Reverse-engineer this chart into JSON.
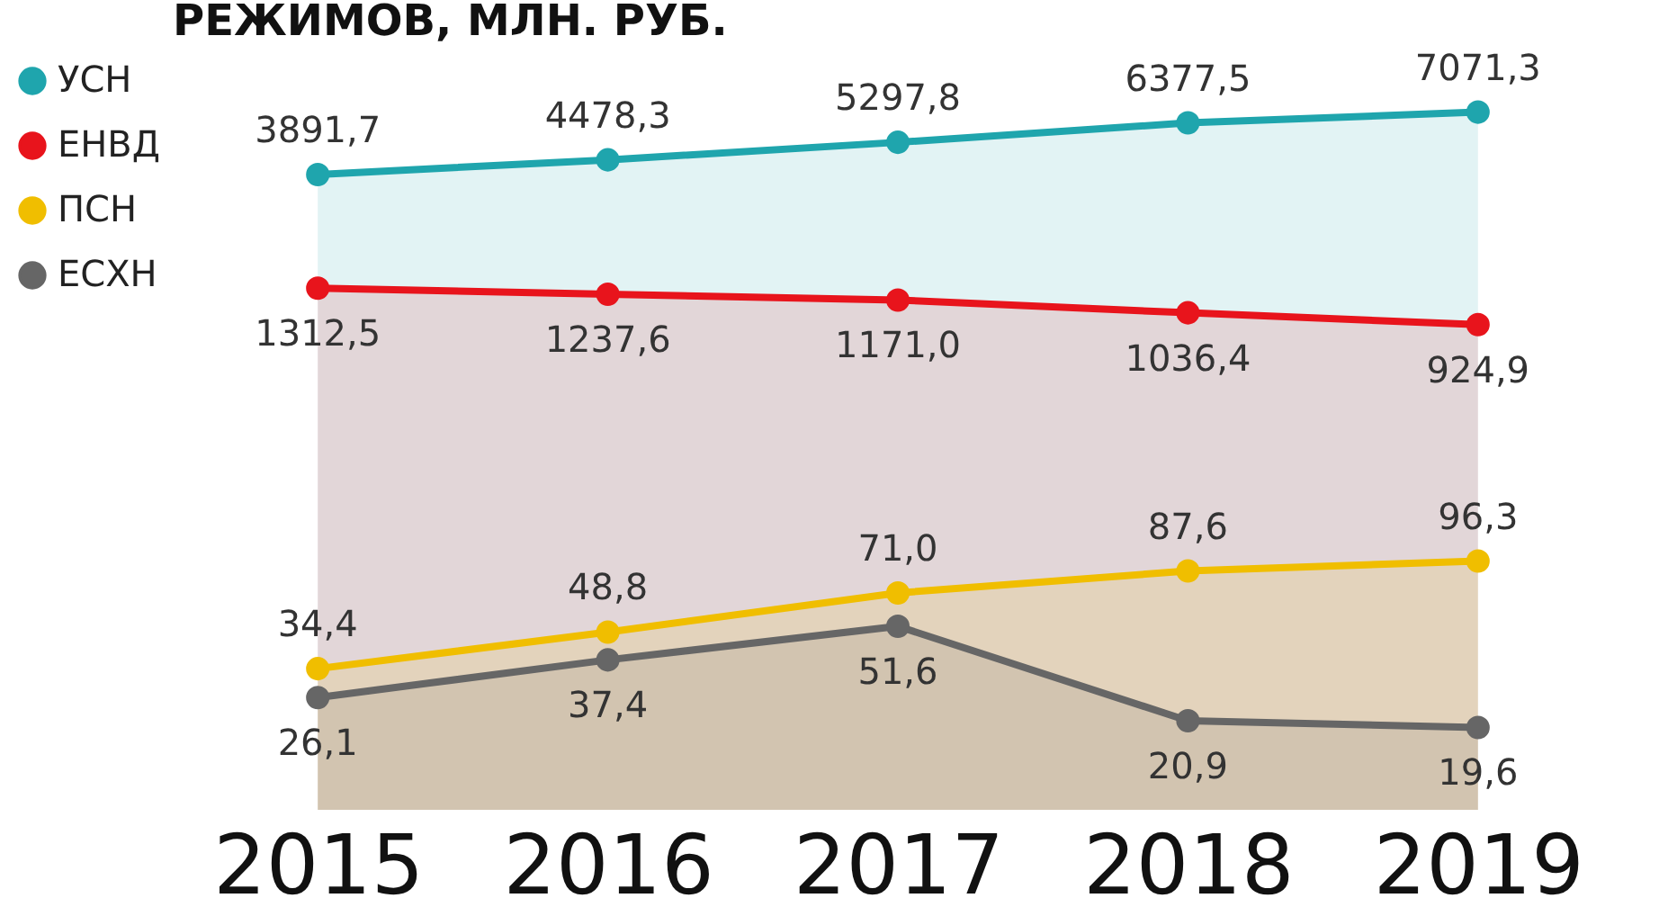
{
  "chart_data": {
    "type": "area",
    "title": "РЕЖИМОВ, МЛН. РУБ.",
    "categories": [
      "2015",
      "2016",
      "2017",
      "2018",
      "2019"
    ],
    "series": [
      {
        "name": "УСН",
        "color": "#1fa5ad",
        "values": [
          3891.7,
          4478.3,
          5297.8,
          6377.5,
          7071.3
        ],
        "value_labels": [
          "3891,7",
          "4478,3",
          "5297,8",
          "6377,5",
          "7071,3"
        ]
      },
      {
        "name": "ЕНВД",
        "color": "#e8141c",
        "values": [
          1312.5,
          1237.6,
          1171.0,
          1036.4,
          924.9
        ],
        "value_labels": [
          "1312,5",
          "1237,6",
          "1171,0",
          "1036,4",
          "924,9"
        ]
      },
      {
        "name": "ПСН",
        "color": "#f0be00",
        "values": [
          34.4,
          48.8,
          71.0,
          87.6,
          96.3
        ],
        "value_labels": [
          "34,4",
          "48,8",
          "71,0",
          "87,6",
          "96,3"
        ]
      },
      {
        "name": "ЕСХН",
        "color": "#666666",
        "values": [
          26.1,
          37.4,
          51.6,
          20.9,
          19.6
        ],
        "value_labels": [
          "26,1",
          "37,4",
          "51,6",
          "20,9",
          "19,6"
        ]
      }
    ],
    "log": true,
    "legend": "left",
    "grid": false
  }
}
